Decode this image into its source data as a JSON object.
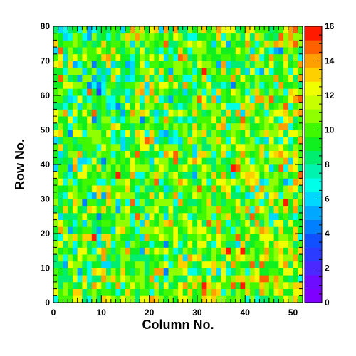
{
  "chart_data": {
    "type": "heatmap",
    "title": "",
    "xlabel": "Column No.",
    "ylabel": "Row No.",
    "x_range": [
      0,
      52
    ],
    "y_range": [
      0,
      80
    ],
    "x_bin_width": 1,
    "y_bin_width": 2,
    "nx": 52,
    "ny": 40,
    "x_ticks": [
      "0",
      "10",
      "20",
      "30",
      "40",
      "50"
    ],
    "y_ticks": [
      "0",
      "10",
      "20",
      "30",
      "40",
      "50",
      "60",
      "70",
      "80"
    ],
    "z_range": [
      0,
      16
    ],
    "z_ticks": [
      "0",
      "2",
      "4",
      "6",
      "8",
      "10",
      "12",
      "14",
      "16"
    ],
    "z_color_levels": 20,
    "colormap": [
      "#8000ff",
      "#6e0cff",
      "#4a28ff",
      "#2a3cff",
      "#1050ff",
      "#0080ff",
      "#00a8ff",
      "#00d8ff",
      "#00ffe8",
      "#00f4b0",
      "#00ee70",
      "#10f020",
      "#40f800",
      "#90ff00",
      "#c8ff00",
      "#f0ff00",
      "#ffd000",
      "#ffa000",
      "#ff6000",
      "#ff1a00"
    ],
    "grid": false,
    "legend": "right colorbar",
    "value_model": {
      "mean_at_origin": 9.6,
      "mean_slope_x": 0.03,
      "mean_slope_y": -0.018,
      "spread": 2.2,
      "seed": 12345
    },
    "z": []
  }
}
